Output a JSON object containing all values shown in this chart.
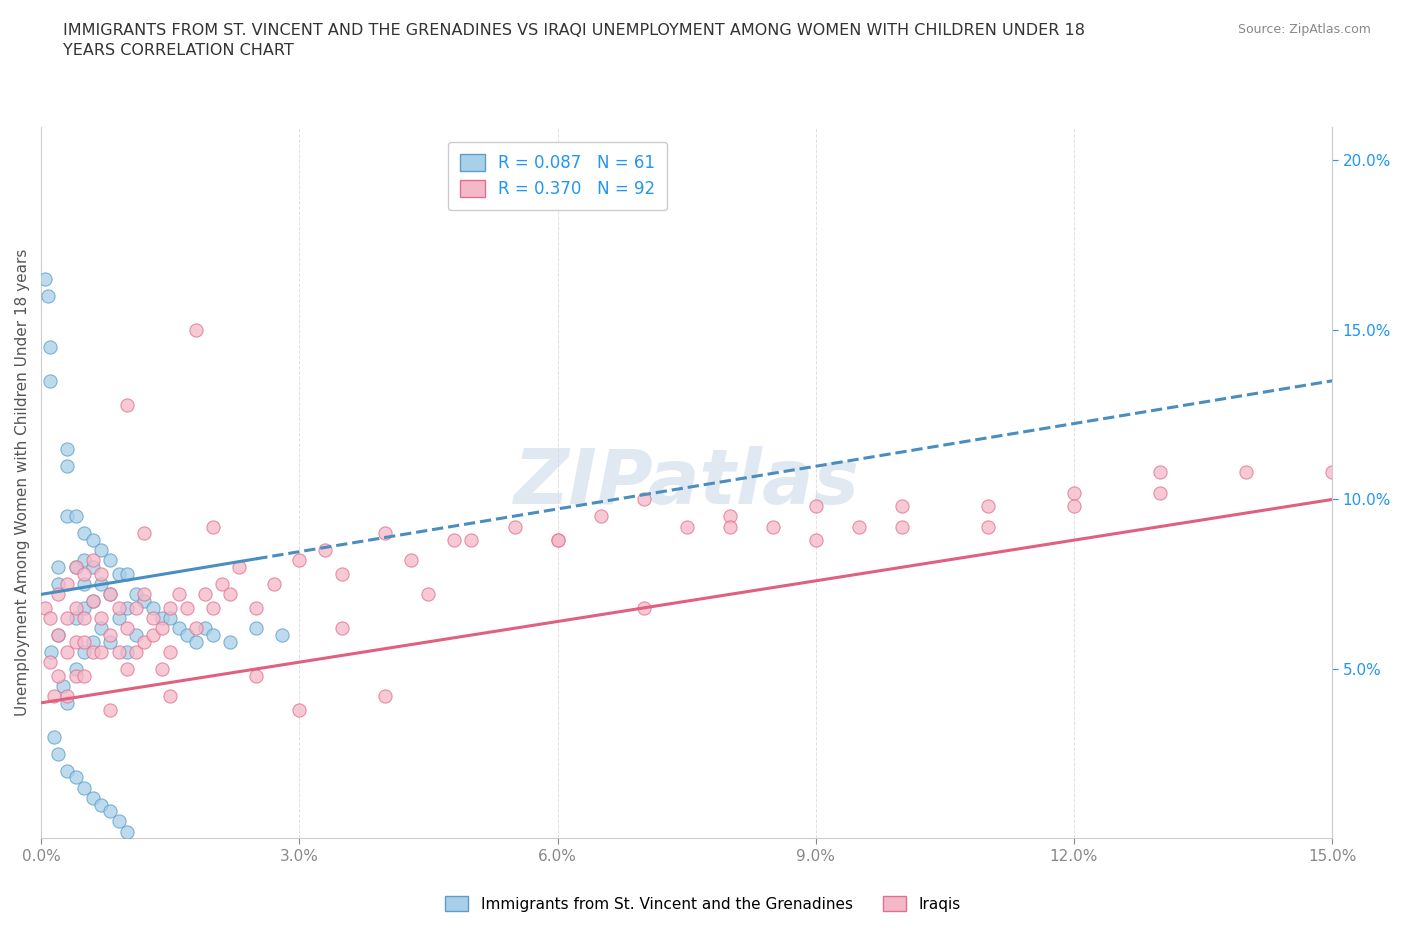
{
  "title": "IMMIGRANTS FROM ST. VINCENT AND THE GRENADINES VS IRAQI UNEMPLOYMENT AMONG WOMEN WITH CHILDREN UNDER 18\nYEARS CORRELATION CHART",
  "source": "Source: ZipAtlas.com",
  "ylabel": "Unemployment Among Women with Children Under 18 years",
  "xlim": [
    0.0,
    0.15
  ],
  "ylim": [
    0.0,
    0.21
  ],
  "xticks": [
    0.0,
    0.03,
    0.06,
    0.09,
    0.12,
    0.15
  ],
  "xtick_labels": [
    "0.0%",
    "3.0%",
    "6.0%",
    "9.0%",
    "12.0%",
    "15.0%"
  ],
  "yticks_right": [
    0.05,
    0.1,
    0.15,
    0.2
  ],
  "ytick_labels_right": [
    "5.0%",
    "10.0%",
    "15.0%",
    "20.0%"
  ],
  "blue_color": "#A8D0E8",
  "pink_color": "#F5B8C8",
  "blue_edge_color": "#5B9EC9",
  "pink_edge_color": "#E07090",
  "blue_line_color": "#4A8EC0",
  "pink_line_color": "#E06080",
  "blue_R": 0.087,
  "blue_N": 61,
  "pink_R": 0.37,
  "pink_N": 92,
  "legend_label_blue": "Immigrants from St. Vincent and the Grenadines",
  "legend_label_pink": "Iraqis",
  "watermark": "ZIPatlas",
  "watermark_color": "#C8D8E8",
  "background_color": "#FFFFFF",
  "grid_color": "#CCCCCC",
  "title_color": "#333333",
  "blue_scatter_x": [
    0.0005,
    0.0008,
    0.001,
    0.001,
    0.0012,
    0.0015,
    0.002,
    0.002,
    0.002,
    0.0025,
    0.003,
    0.003,
    0.003,
    0.003,
    0.004,
    0.004,
    0.004,
    0.004,
    0.005,
    0.005,
    0.005,
    0.005,
    0.005,
    0.006,
    0.006,
    0.006,
    0.006,
    0.007,
    0.007,
    0.007,
    0.008,
    0.008,
    0.008,
    0.009,
    0.009,
    0.01,
    0.01,
    0.01,
    0.011,
    0.011,
    0.012,
    0.013,
    0.014,
    0.015,
    0.016,
    0.017,
    0.018,
    0.019,
    0.02,
    0.022,
    0.025,
    0.028,
    0.002,
    0.003,
    0.004,
    0.005,
    0.006,
    0.007,
    0.008,
    0.009,
    0.01
  ],
  "blue_scatter_y": [
    0.165,
    0.16,
    0.145,
    0.135,
    0.055,
    0.03,
    0.08,
    0.075,
    0.06,
    0.045,
    0.115,
    0.11,
    0.095,
    0.04,
    0.095,
    0.08,
    0.065,
    0.05,
    0.09,
    0.082,
    0.075,
    0.068,
    0.055,
    0.088,
    0.08,
    0.07,
    0.058,
    0.085,
    0.075,
    0.062,
    0.082,
    0.072,
    0.058,
    0.078,
    0.065,
    0.078,
    0.068,
    0.055,
    0.072,
    0.06,
    0.07,
    0.068,
    0.065,
    0.065,
    0.062,
    0.06,
    0.058,
    0.062,
    0.06,
    0.058,
    0.062,
    0.06,
    0.025,
    0.02,
    0.018,
    0.015,
    0.012,
    0.01,
    0.008,
    0.005,
    0.002
  ],
  "pink_scatter_x": [
    0.0005,
    0.001,
    0.001,
    0.0015,
    0.002,
    0.002,
    0.002,
    0.003,
    0.003,
    0.003,
    0.003,
    0.004,
    0.004,
    0.004,
    0.004,
    0.005,
    0.005,
    0.005,
    0.005,
    0.006,
    0.006,
    0.006,
    0.007,
    0.007,
    0.007,
    0.008,
    0.008,
    0.009,
    0.009,
    0.01,
    0.01,
    0.011,
    0.011,
    0.012,
    0.012,
    0.013,
    0.013,
    0.014,
    0.014,
    0.015,
    0.015,
    0.016,
    0.017,
    0.018,
    0.019,
    0.02,
    0.021,
    0.022,
    0.023,
    0.025,
    0.027,
    0.03,
    0.033,
    0.035,
    0.04,
    0.043,
    0.048,
    0.055,
    0.06,
    0.065,
    0.07,
    0.075,
    0.08,
    0.085,
    0.09,
    0.095,
    0.1,
    0.11,
    0.12,
    0.13,
    0.14,
    0.15,
    0.01,
    0.012,
    0.015,
    0.02,
    0.025,
    0.03,
    0.035,
    0.04,
    0.045,
    0.05,
    0.06,
    0.07,
    0.08,
    0.09,
    0.1,
    0.11,
    0.12,
    0.13,
    0.008,
    0.018
  ],
  "pink_scatter_y": [
    0.068,
    0.065,
    0.052,
    0.042,
    0.072,
    0.06,
    0.048,
    0.075,
    0.065,
    0.055,
    0.042,
    0.08,
    0.068,
    0.058,
    0.048,
    0.078,
    0.065,
    0.058,
    0.048,
    0.082,
    0.07,
    0.055,
    0.078,
    0.065,
    0.055,
    0.072,
    0.06,
    0.068,
    0.055,
    0.062,
    0.05,
    0.068,
    0.055,
    0.072,
    0.058,
    0.065,
    0.06,
    0.062,
    0.05,
    0.068,
    0.055,
    0.072,
    0.068,
    0.062,
    0.072,
    0.068,
    0.075,
    0.072,
    0.08,
    0.068,
    0.075,
    0.082,
    0.085,
    0.078,
    0.09,
    0.082,
    0.088,
    0.092,
    0.088,
    0.095,
    0.1,
    0.092,
    0.095,
    0.092,
    0.098,
    0.092,
    0.098,
    0.098,
    0.102,
    0.102,
    0.108,
    0.108,
    0.128,
    0.09,
    0.042,
    0.092,
    0.048,
    0.038,
    0.062,
    0.042,
    0.072,
    0.088,
    0.088,
    0.068,
    0.092,
    0.088,
    0.092,
    0.092,
    0.098,
    0.108,
    0.038,
    0.15
  ]
}
